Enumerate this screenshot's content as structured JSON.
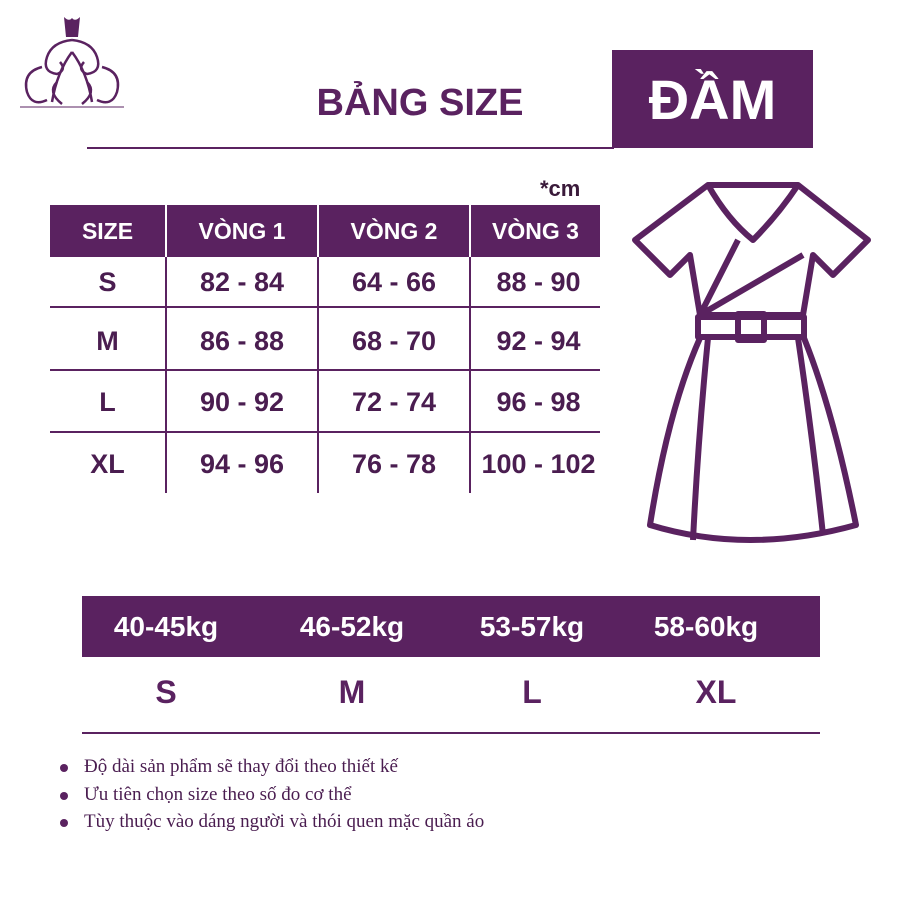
{
  "logo": {
    "icon": "ornate-dress-logo-icon"
  },
  "title": "BẢNG SIZE",
  "category": "ĐẦM",
  "unit": "*cm",
  "colors": {
    "accent": "#5a2260",
    "text": "#4a1d50"
  },
  "size_table": {
    "headers": [
      "SIZE",
      "VÒNG 1",
      "VÒNG 2",
      "VÒNG 3"
    ],
    "rows": [
      [
        "S",
        "82 - 84",
        "64 - 66",
        "88 - 90"
      ],
      [
        "M",
        "86 - 88",
        "68 - 70",
        "92 - 94"
      ],
      [
        "L",
        "90 - 92",
        "72 - 74",
        "96 - 98"
      ],
      [
        "XL",
        "94 - 96",
        "76 - 78",
        "100 - 102"
      ]
    ]
  },
  "dress_illustration": {
    "icon": "dress-outline-icon"
  },
  "weight_table": {
    "weights": [
      "40-45kg",
      "46-52kg",
      "53-57kg",
      "58-60kg"
    ],
    "sizes": [
      "S",
      "M",
      "L",
      "XL"
    ]
  },
  "notes": [
    "Độ dài sản phẩm sẽ thay đổi theo thiết kế",
    "Ưu tiên chọn size theo số đo cơ thể",
    "Tùy thuộc vào dáng người và thói quen mặc quần áo"
  ]
}
